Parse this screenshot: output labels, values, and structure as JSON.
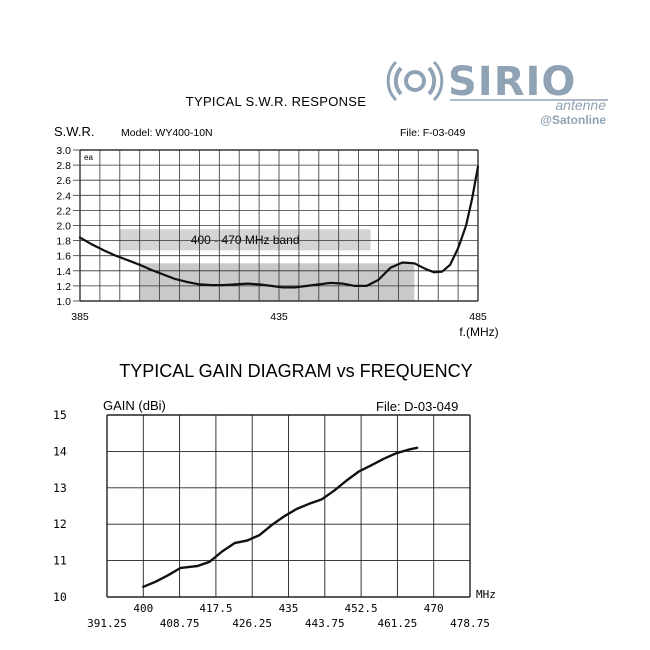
{
  "logo": {
    "brand": "SIRIO",
    "sub": "antenne",
    "watermark": "@Satonline",
    "color": "#8fa3b4"
  },
  "chart_data": [
    {
      "type": "line",
      "title": "TYPICAL S.W.R. RESPONSE",
      "ylabel": "S.W.R.",
      "xlabel": "f.(MHz)",
      "model": "Model:  WY400-10N",
      "file": "File:  F-03-049",
      "corner_mark": "ea",
      "xlim": [
        385,
        485
      ],
      "ylim": [
        1.0,
        3.0
      ],
      "x_ticks": [
        385,
        435,
        485
      ],
      "y_ticks": [
        1.0,
        1.2,
        1.4,
        1.6,
        1.8,
        2.0,
        2.2,
        2.4,
        2.6,
        2.8,
        3.0
      ],
      "y_tick_labels": [
        "1.0",
        "1.2",
        "1.4",
        "1.6",
        "1.8",
        "2.0",
        "2.2",
        "2.4",
        "2.6",
        "2.8",
        "3.0"
      ],
      "band": {
        "label": "400 - 470 MHz band",
        "x_start": 400,
        "x_end": 469,
        "y_low": 1.0,
        "y_high": 1.5,
        "color": "#c9c9c9"
      },
      "grid": true,
      "series": [
        {
          "points": [
            [
              385,
              1.84
            ],
            [
              388,
              1.75
            ],
            [
              391,
              1.67
            ],
            [
              394,
              1.6
            ],
            [
              397,
              1.54
            ],
            [
              400,
              1.48
            ],
            [
              403,
              1.41
            ],
            [
              406,
              1.35
            ],
            [
              409,
              1.29
            ],
            [
              412,
              1.25
            ],
            [
              415,
              1.22
            ],
            [
              418,
              1.21
            ],
            [
              421,
              1.21
            ],
            [
              424,
              1.22
            ],
            [
              427,
              1.23
            ],
            [
              430,
              1.22
            ],
            [
              433,
              1.2
            ],
            [
              436,
              1.18
            ],
            [
              439,
              1.18
            ],
            [
              442,
              1.2
            ],
            [
              445,
              1.22
            ],
            [
              448,
              1.24
            ],
            [
              451,
              1.23
            ],
            [
              454,
              1.2
            ],
            [
              457,
              1.2
            ],
            [
              460,
              1.28
            ],
            [
              463,
              1.44
            ],
            [
              466,
              1.51
            ],
            [
              469,
              1.5
            ],
            [
              472,
              1.42
            ],
            [
              474,
              1.38
            ],
            [
              476,
              1.39
            ],
            [
              478,
              1.48
            ],
            [
              480,
              1.7
            ],
            [
              482,
              2.0
            ],
            [
              483.5,
              2.35
            ],
            [
              485,
              2.78
            ]
          ]
        }
      ]
    },
    {
      "type": "line",
      "title": "TYPICAL GAIN DIAGRAM vs FREQUENCY",
      "ylabel": "GAIN (dBi)",
      "xlabel": "MHz",
      "file": "File:  D-03-049",
      "xlim": [
        391.25,
        478.75
      ],
      "ylim": [
        10,
        15
      ],
      "y_ticks": [
        10,
        11,
        12,
        13,
        14,
        15
      ],
      "x_ticks_top": [
        400,
        417.5,
        435,
        452.5,
        470
      ],
      "x_ticks_top_labels": [
        "400",
        "417.5",
        "435",
        "452.5",
        "470"
      ],
      "x_ticks_bottom": [
        391.25,
        408.75,
        426.25,
        443.75,
        461.25,
        478.75
      ],
      "x_ticks_bottom_labels": [
        "391.25",
        "408.75",
        "426.25",
        "443.75",
        "461.25",
        "478.75"
      ],
      "grid": true,
      "series": [
        {
          "points": [
            [
              400,
              10.28
            ],
            [
              403,
              10.42
            ],
            [
              406,
              10.6
            ],
            [
              409,
              10.8
            ],
            [
              413,
              10.85
            ],
            [
              416,
              10.97
            ],
            [
              419,
              11.25
            ],
            [
              422,
              11.48
            ],
            [
              425,
              11.55
            ],
            [
              428,
              11.7
            ],
            [
              431,
              11.98
            ],
            [
              434,
              12.22
            ],
            [
              437,
              12.42
            ],
            [
              440,
              12.56
            ],
            [
              443,
              12.68
            ],
            [
              446,
              12.92
            ],
            [
              449,
              13.2
            ],
            [
              452,
              13.45
            ],
            [
              455,
              13.62
            ],
            [
              458,
              13.8
            ],
            [
              461,
              13.95
            ],
            [
              464,
              14.05
            ],
            [
              466,
              14.1
            ]
          ]
        }
      ]
    }
  ]
}
